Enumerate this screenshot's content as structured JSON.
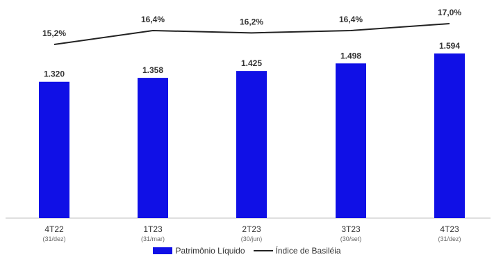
{
  "chart_data": {
    "type": "bar",
    "categories": [
      "4T22",
      "1T23",
      "2T23",
      "3T23",
      "4T23"
    ],
    "category_sublabels": [
      "(31/dez)",
      "(31/mar)",
      "(30/jun)",
      "(30/set)",
      "(31/dez)"
    ],
    "series": [
      {
        "name": "Patrimônio Líquido",
        "type": "bar",
        "values": [
          1320,
          1358,
          1425,
          1498,
          1594
        ],
        "labels": [
          "1.320",
          "1.358",
          "1.425",
          "1.498",
          "1.594"
        ],
        "color": "#1010e6"
      },
      {
        "name": "Índice de Basiléia",
        "type": "line",
        "values": [
          15.2,
          16.4,
          16.2,
          16.4,
          17.0
        ],
        "labels": [
          "15,2%",
          "16,4%",
          "16,2%",
          "16,4%",
          "17,0%"
        ],
        "color": "#222222"
      }
    ],
    "bar_ylim": [
      0,
      1700
    ],
    "line_ylim": [
      0,
      18
    ],
    "legend_position": "bottom",
    "grid": false
  }
}
